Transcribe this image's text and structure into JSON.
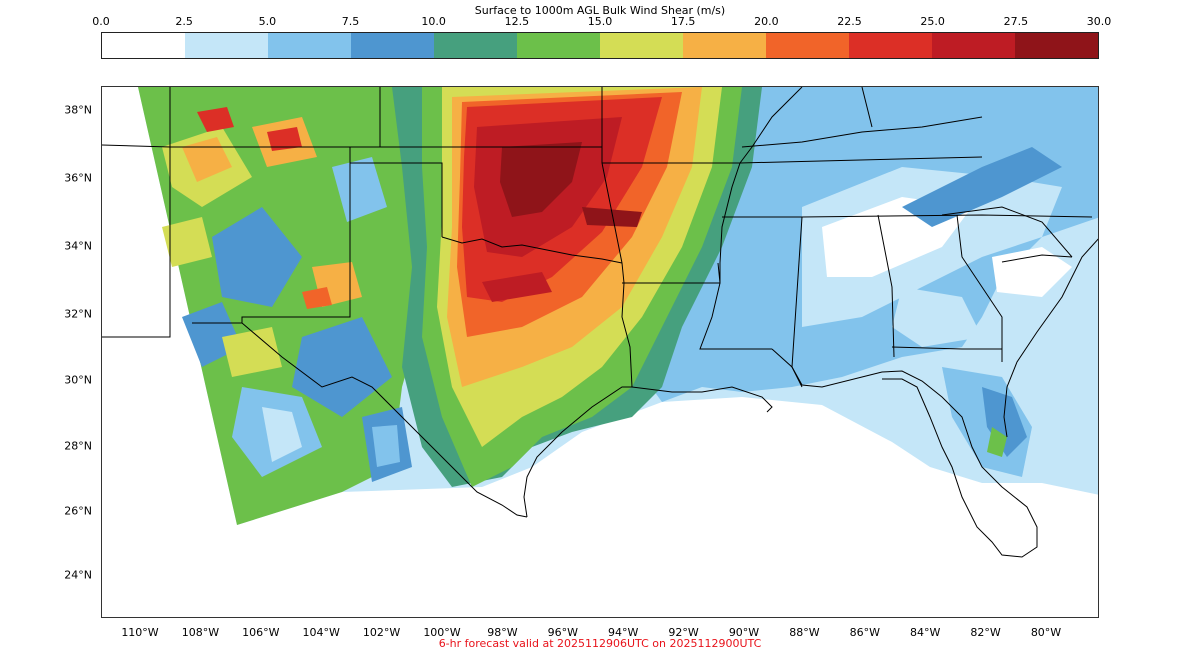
{
  "colorbar": {
    "title": "Surface to 1000m AGL Bulk Wind Shear (m/s)",
    "ticks": [
      "0.0",
      "2.5",
      "5.0",
      "7.5",
      "10.0",
      "12.5",
      "15.0",
      "17.5",
      "20.0",
      "22.5",
      "25.0",
      "27.5",
      "30.0"
    ],
    "colors": [
      "#ffffff",
      "#c4e6f8",
      "#82c3ec",
      "#4e96d0",
      "#46a07e",
      "#6cc04a",
      "#d4dd55",
      "#f6b045",
      "#f16429",
      "#dc2f26",
      "#be1c24",
      "#8f1419"
    ]
  },
  "map": {
    "lat_labels": [
      "38°N",
      "36°N",
      "34°N",
      "32°N",
      "30°N",
      "28°N",
      "26°N",
      "24°N"
    ],
    "lon_labels": [
      "110°W",
      "108°W",
      "106°W",
      "104°W",
      "102°W",
      "100°W",
      "98°W",
      "96°W",
      "94°W",
      "92°W",
      "90°W",
      "88°W",
      "86°W",
      "84°W",
      "82°W",
      "80°W"
    ]
  },
  "footer": "6-hr forecast valid at 2025112906UTC on 2025112900UTC"
}
